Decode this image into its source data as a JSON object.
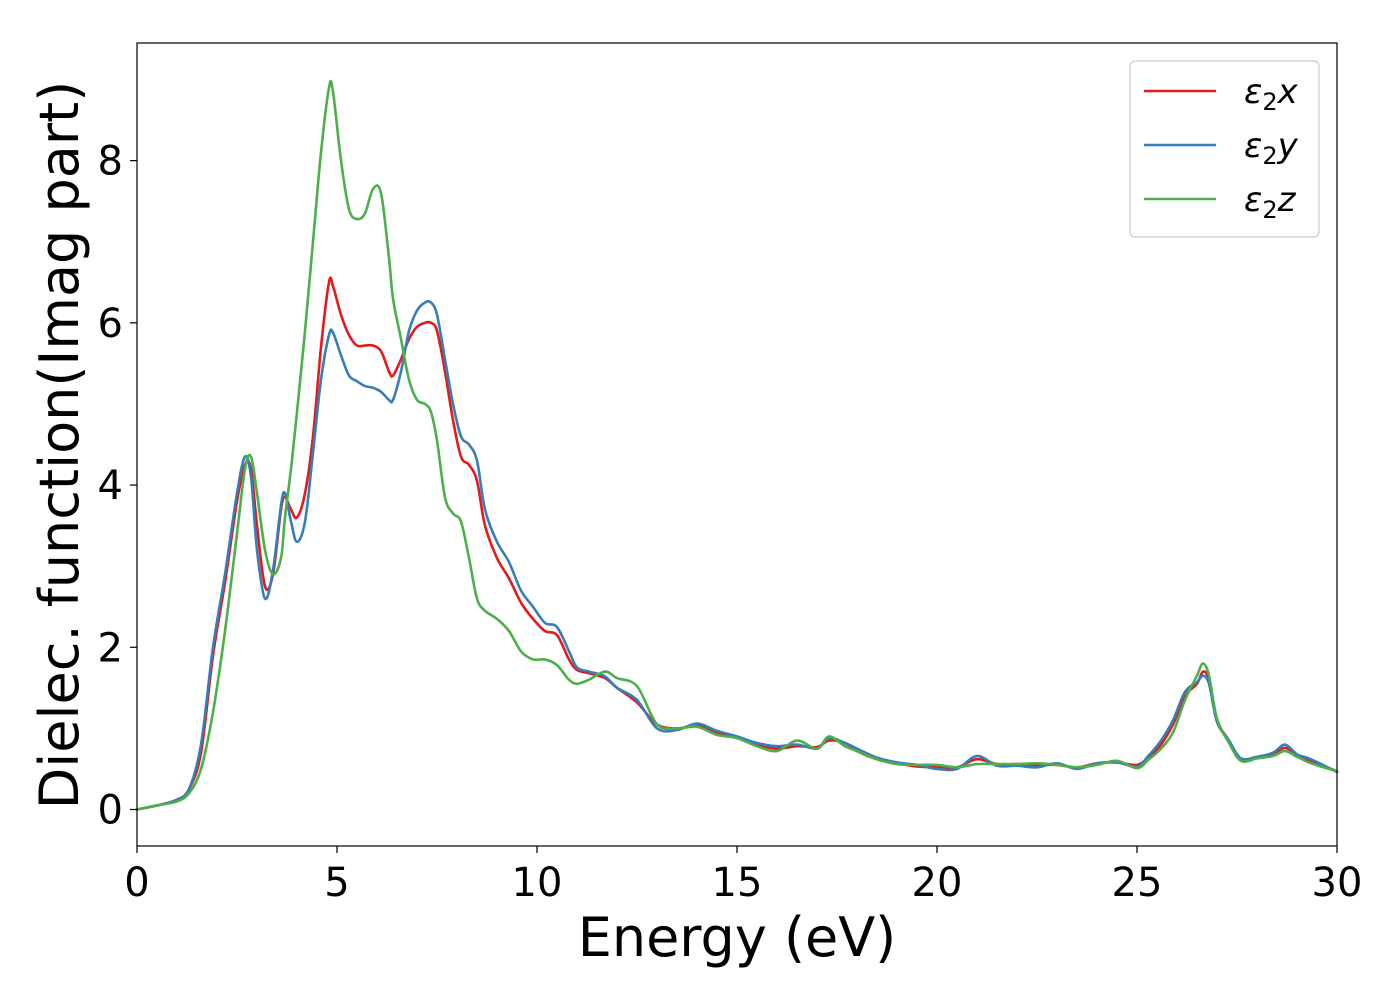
{
  "chart_data": {
    "type": "line",
    "xlabel": "Energy (eV)",
    "ylabel": "Dielec. function(Imag part)",
    "xlim": [
      0,
      30
    ],
    "ylim": [
      -0.45,
      9.45
    ],
    "xticks": [
      0,
      5,
      10,
      15,
      20,
      25,
      30
    ],
    "yticks": [
      0,
      2,
      4,
      6,
      8
    ],
    "grid": false,
    "legend_position": "top-right",
    "series": [
      {
        "name": "ε2x",
        "legend": {
          "symbol": "ε",
          "subscript": "2",
          "axis": "x"
        },
        "color": "#e41a1c",
        "x": [
          0,
          0.5,
          1,
          1.3,
          1.6,
          1.9,
          2.2,
          2.5,
          2.7,
          2.85,
          3.0,
          3.2,
          3.4,
          3.6,
          3.7,
          3.85,
          4.0,
          4.2,
          4.4,
          4.6,
          4.8,
          4.9,
          5.1,
          5.3,
          5.5,
          5.7,
          5.9,
          6.1,
          6.3,
          6.4,
          6.6,
          6.8,
          7.0,
          7.2,
          7.35,
          7.5,
          7.7,
          7.9,
          8.1,
          8.3,
          8.5,
          8.7,
          9.0,
          9.3,
          9.6,
          9.9,
          10.2,
          10.5,
          10.8,
          11.0,
          11.3,
          11.7,
          12.0,
          12.5,
          13.0,
          13.5,
          14.0,
          14.5,
          15.0,
          15.5,
          16.0,
          16.5,
          17.0,
          17.3,
          17.7,
          18.0,
          18.5,
          19.0,
          19.5,
          20.0,
          20.5,
          21.0,
          21.5,
          22.0,
          22.5,
          23.0,
          23.5,
          24.0,
          24.5,
          25.0,
          25.3,
          25.6,
          25.9,
          26.2,
          26.5,
          26.65,
          26.8,
          27.0,
          27.3,
          27.6,
          28.0,
          28.4,
          28.7,
          29.0,
          29.3,
          29.6,
          30.0
        ],
        "y": [
          0,
          0.05,
          0.12,
          0.25,
          0.7,
          1.9,
          2.8,
          3.8,
          4.25,
          4.2,
          3.5,
          2.75,
          2.9,
          3.7,
          3.85,
          3.7,
          3.6,
          3.9,
          4.6,
          5.7,
          6.5,
          6.45,
          6.1,
          5.85,
          5.72,
          5.72,
          5.72,
          5.65,
          5.4,
          5.35,
          5.55,
          5.8,
          5.95,
          6.0,
          6.0,
          5.9,
          5.4,
          4.8,
          4.35,
          4.25,
          4.05,
          3.5,
          3.1,
          2.85,
          2.55,
          2.35,
          2.2,
          2.15,
          1.85,
          1.72,
          1.68,
          1.62,
          1.5,
          1.32,
          1.05,
          1.0,
          1.03,
          0.95,
          0.9,
          0.8,
          0.75,
          0.78,
          0.77,
          0.85,
          0.82,
          0.72,
          0.62,
          0.57,
          0.53,
          0.52,
          0.52,
          0.62,
          0.56,
          0.56,
          0.55,
          0.55,
          0.52,
          0.57,
          0.58,
          0.55,
          0.65,
          0.8,
          1.05,
          1.4,
          1.55,
          1.7,
          1.6,
          1.1,
          0.85,
          0.62,
          0.64,
          0.68,
          0.76,
          0.67,
          0.6,
          0.55,
          0.47
        ]
      },
      {
        "name": "ε2y",
        "legend": {
          "symbol": "ε",
          "subscript": "2",
          "axis": "y"
        },
        "color": "#377eb8",
        "x": [
          0,
          0.5,
          1,
          1.3,
          1.6,
          1.9,
          2.2,
          2.5,
          2.7,
          2.85,
          3.0,
          3.2,
          3.4,
          3.6,
          3.7,
          3.85,
          4.0,
          4.2,
          4.4,
          4.6,
          4.8,
          4.9,
          5.1,
          5.3,
          5.5,
          5.7,
          5.9,
          6.1,
          6.3,
          6.4,
          6.6,
          6.8,
          7.0,
          7.2,
          7.35,
          7.5,
          7.7,
          7.9,
          8.1,
          8.3,
          8.5,
          8.7,
          9.0,
          9.3,
          9.6,
          9.9,
          10.2,
          10.5,
          10.8,
          11.0,
          11.3,
          11.7,
          12.0,
          12.5,
          13.0,
          13.5,
          14.0,
          14.5,
          15.0,
          15.5,
          16.0,
          16.5,
          17.0,
          17.3,
          17.7,
          18.0,
          18.5,
          19.0,
          19.5,
          20.0,
          20.5,
          21.0,
          21.5,
          22.0,
          22.5,
          23.0,
          23.5,
          24.0,
          24.5,
          25.0,
          25.3,
          25.6,
          25.9,
          26.2,
          26.5,
          26.65,
          26.8,
          27.0,
          27.3,
          27.6,
          28.0,
          28.4,
          28.7,
          29.0,
          29.3,
          29.6,
          30.0
        ],
        "y": [
          0,
          0.05,
          0.12,
          0.25,
          0.8,
          2.0,
          2.9,
          3.9,
          4.35,
          4.1,
          3.2,
          2.6,
          2.95,
          3.75,
          3.9,
          3.55,
          3.3,
          3.55,
          4.4,
          5.3,
          5.85,
          5.88,
          5.6,
          5.35,
          5.28,
          5.22,
          5.2,
          5.15,
          5.05,
          5.05,
          5.4,
          5.9,
          6.15,
          6.25,
          6.25,
          6.1,
          5.55,
          5.0,
          4.6,
          4.5,
          4.3,
          3.7,
          3.3,
          3.05,
          2.7,
          2.5,
          2.3,
          2.25,
          1.95,
          1.75,
          1.7,
          1.64,
          1.5,
          1.35,
          1.0,
          0.98,
          1.06,
          0.97,
          0.9,
          0.82,
          0.78,
          0.8,
          0.75,
          0.88,
          0.82,
          0.75,
          0.64,
          0.58,
          0.55,
          0.5,
          0.5,
          0.66,
          0.54,
          0.54,
          0.52,
          0.57,
          0.5,
          0.57,
          0.58,
          0.53,
          0.67,
          0.85,
          1.1,
          1.45,
          1.57,
          1.65,
          1.55,
          1.08,
          0.85,
          0.63,
          0.65,
          0.7,
          0.8,
          0.68,
          0.63,
          0.56,
          0.46
        ]
      },
      {
        "name": "ε2z",
        "legend": {
          "symbol": "ε",
          "subscript": "2",
          "axis": "z"
        },
        "color": "#4daf4a",
        "x": [
          0,
          0.5,
          1,
          1.3,
          1.6,
          1.9,
          2.2,
          2.5,
          2.7,
          2.85,
          3.0,
          3.2,
          3.4,
          3.6,
          3.7,
          3.85,
          4.0,
          4.2,
          4.4,
          4.6,
          4.8,
          4.9,
          5.1,
          5.3,
          5.5,
          5.7,
          5.9,
          6.1,
          6.3,
          6.4,
          6.6,
          6.8,
          7.0,
          7.2,
          7.35,
          7.5,
          7.7,
          7.9,
          8.1,
          8.3,
          8.5,
          8.7,
          9.0,
          9.3,
          9.6,
          9.9,
          10.2,
          10.5,
          10.8,
          11.0,
          11.3,
          11.7,
          12.0,
          12.5,
          13.0,
          13.5,
          14.0,
          14.5,
          15.0,
          15.5,
          16.0,
          16.5,
          17.0,
          17.3,
          17.7,
          18.0,
          18.5,
          19.0,
          19.5,
          20.0,
          20.5,
          21.0,
          21.5,
          22.0,
          22.5,
          23.0,
          23.5,
          24.0,
          24.5,
          25.0,
          25.3,
          25.6,
          25.9,
          26.2,
          26.5,
          26.65,
          26.8,
          27.0,
          27.3,
          27.6,
          28.0,
          28.4,
          28.7,
          29.0,
          29.3,
          29.6,
          30.0
        ],
        "y": [
          0,
          0.05,
          0.1,
          0.2,
          0.5,
          1.2,
          2.2,
          3.4,
          4.2,
          4.35,
          3.9,
          3.2,
          2.9,
          3.1,
          3.6,
          4.2,
          4.9,
          5.9,
          7.0,
          8.1,
          8.9,
          8.85,
          8.0,
          7.4,
          7.28,
          7.35,
          7.65,
          7.6,
          6.8,
          6.3,
          5.8,
          5.3,
          5.05,
          5.0,
          4.9,
          4.55,
          3.85,
          3.65,
          3.55,
          3.1,
          2.6,
          2.45,
          2.35,
          2.2,
          1.95,
          1.85,
          1.85,
          1.78,
          1.6,
          1.55,
          1.6,
          1.7,
          1.62,
          1.52,
          1.05,
          1.0,
          1.02,
          0.92,
          0.88,
          0.78,
          0.72,
          0.85,
          0.75,
          0.9,
          0.78,
          0.72,
          0.62,
          0.56,
          0.55,
          0.55,
          0.52,
          0.56,
          0.56,
          0.56,
          0.57,
          0.55,
          0.52,
          0.55,
          0.6,
          0.51,
          0.62,
          0.75,
          0.95,
          1.35,
          1.65,
          1.8,
          1.65,
          1.12,
          0.82,
          0.6,
          0.63,
          0.66,
          0.72,
          0.65,
          0.58,
          0.53,
          0.47
        ]
      }
    ]
  }
}
